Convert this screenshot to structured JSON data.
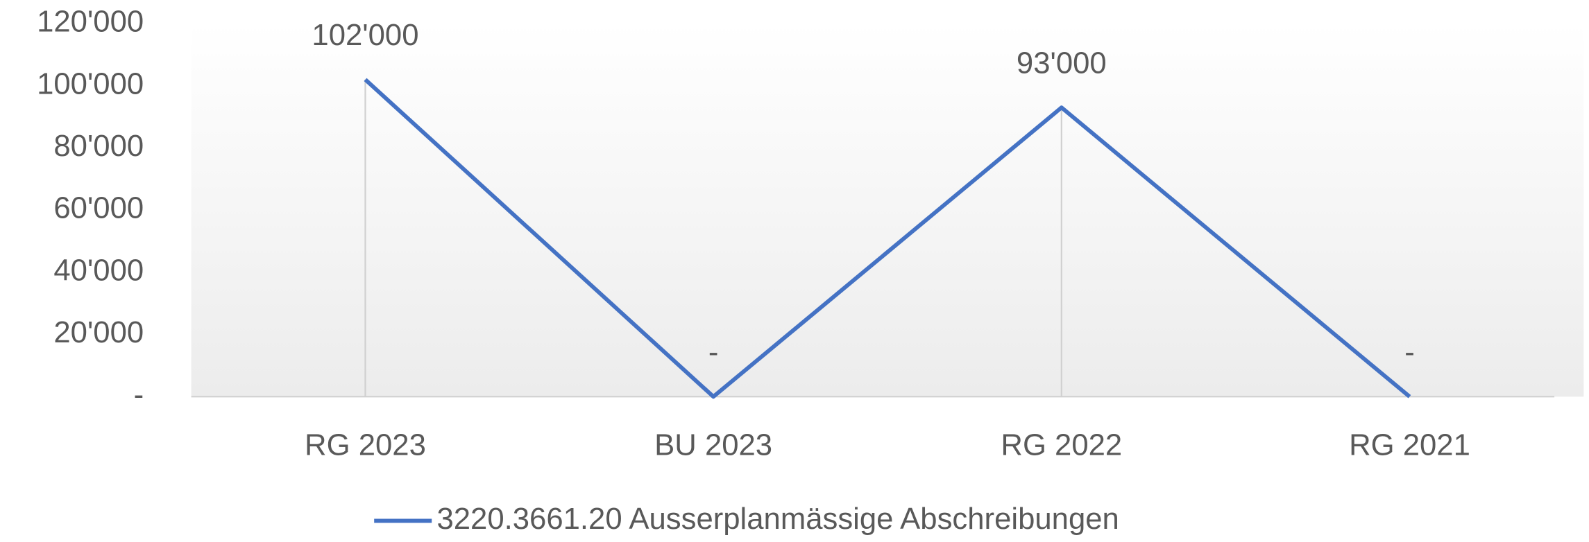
{
  "chart_data": {
    "type": "line",
    "categories": [
      "RG 2023",
      "BU 2023",
      "RG 2022",
      "RG 2021"
    ],
    "series": [
      {
        "name": "3220.3661.20 Ausserplanmässige Abschreibungen",
        "color": "#4472c4",
        "values": [
          102000,
          0,
          93000,
          0
        ],
        "value_labels": [
          "102'000",
          "-",
          "93'000",
          "-"
        ]
      }
    ],
    "ylim": [
      0,
      120000
    ],
    "yticks": [
      {
        "value": 0,
        "label": "-"
      },
      {
        "value": 20000,
        "label": "20'000"
      },
      {
        "value": 40000,
        "label": "40'000"
      },
      {
        "value": 60000,
        "label": "60'000"
      },
      {
        "value": 80000,
        "label": "80'000"
      },
      {
        "value": 100000,
        "label": "100'000"
      },
      {
        "value": 120000,
        "label": "120'000"
      }
    ],
    "legend": "bottom"
  }
}
